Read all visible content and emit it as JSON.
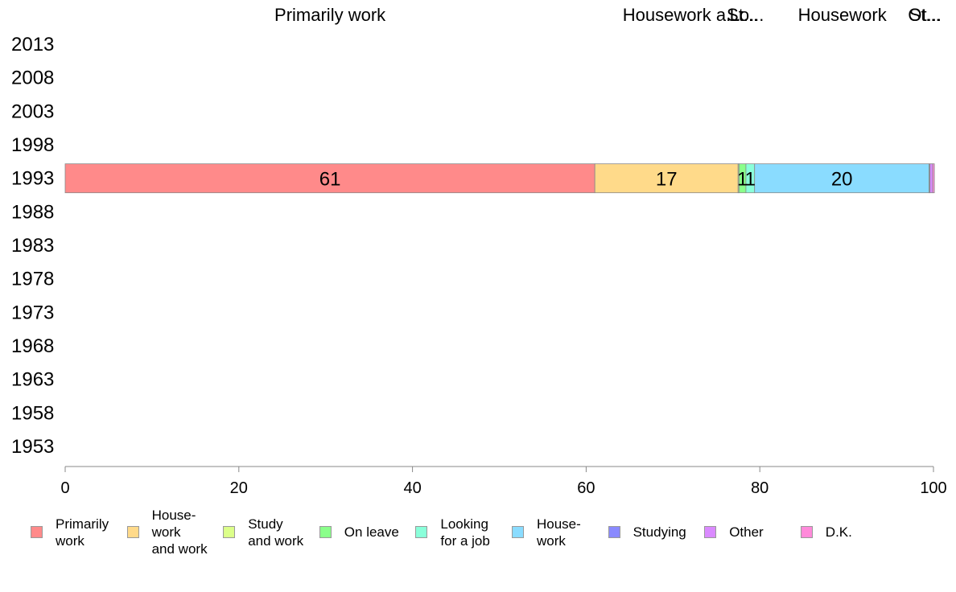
{
  "chart_data": {
    "type": "bar",
    "orientation": "horizontal",
    "stacked": true,
    "categories": [
      "2013",
      "2008",
      "2003",
      "1998",
      "1993",
      "1988",
      "1983",
      "1978",
      "1973",
      "1968",
      "1963",
      "1958",
      "1953"
    ],
    "xlim": [
      0,
      100
    ],
    "xticks": [
      "0",
      "20",
      "40",
      "60",
      "80",
      "100"
    ],
    "grid": false,
    "legend_position": "bottom",
    "top_labels": [
      "Primarily work",
      "Housework a...",
      "St...",
      "Lo...",
      "Housework",
      "St...",
      "Ot..."
    ],
    "series": [
      {
        "name": "Primarily work",
        "legend": "Primarily\nwork",
        "color": "#ff8a8a",
        "values": [
          null,
          null,
          null,
          null,
          61,
          null,
          null,
          null,
          null,
          null,
          null,
          null,
          null
        ],
        "data_labels": [
          "",
          "",
          "",
          "",
          "61",
          "",
          "",
          "",
          "",
          "",
          "",
          "",
          ""
        ]
      },
      {
        "name": "Housework and work",
        "legend": "House-\nwork\nand work",
        "color": "#ffda8a",
        "values": [
          null,
          null,
          null,
          null,
          16.5,
          null,
          null,
          null,
          null,
          null,
          null,
          null,
          null
        ],
        "data_labels": [
          "",
          "",
          "",
          "",
          "17",
          "",
          "",
          "",
          "",
          "",
          "",
          "",
          ""
        ]
      },
      {
        "name": "Study and work",
        "legend": "Study\nand work",
        "color": "#dcff8a",
        "values": [
          null,
          null,
          null,
          null,
          0.1,
          null,
          null,
          null,
          null,
          null,
          null,
          null,
          null
        ],
        "data_labels": [
          "",
          "",
          "",
          "",
          "",
          "",
          "",
          "",
          "",
          "",
          "",
          "",
          ""
        ]
      },
      {
        "name": "On leave",
        "legend": "On leave",
        "color": "#8aff8a",
        "values": [
          null,
          null,
          null,
          null,
          0.8,
          null,
          null,
          null,
          null,
          null,
          null,
          null,
          null
        ],
        "data_labels": [
          "",
          "",
          "",
          "",
          "1",
          "",
          "",
          "",
          "",
          "",
          "",
          "",
          ""
        ]
      },
      {
        "name": "Looking for a job",
        "legend": "Looking\nfor a job",
        "color": "#8affda",
        "values": [
          null,
          null,
          null,
          null,
          1,
          null,
          null,
          null,
          null,
          null,
          null,
          null,
          null
        ],
        "data_labels": [
          "",
          "",
          "",
          "",
          "1",
          "",
          "",
          "",
          "",
          "",
          "",
          "",
          ""
        ]
      },
      {
        "name": "Housework",
        "legend": "House-\nwork",
        "color": "#8adcff",
        "values": [
          null,
          null,
          null,
          null,
          20.1,
          null,
          null,
          null,
          null,
          null,
          null,
          null,
          null
        ],
        "data_labels": [
          "",
          "",
          "",
          "",
          "20",
          "",
          "",
          "",
          "",
          "",
          "",
          "",
          ""
        ]
      },
      {
        "name": "Studying",
        "legend": "Studying",
        "color": "#8a8aff",
        "values": [
          null,
          null,
          null,
          null,
          0.1,
          null,
          null,
          null,
          null,
          null,
          null,
          null,
          null
        ],
        "data_labels": [
          "",
          "",
          "",
          "",
          "",
          "",
          "",
          "",
          "",
          "",
          "",
          "",
          ""
        ]
      },
      {
        "name": "Other",
        "legend": "Other",
        "color": "#da8aff",
        "values": [
          null,
          null,
          null,
          null,
          0.3,
          null,
          null,
          null,
          null,
          null,
          null,
          null,
          null
        ],
        "data_labels": [
          "",
          "",
          "",
          "",
          "",
          "",
          "",
          "",
          "",
          "",
          "",
          "",
          ""
        ]
      },
      {
        "name": "D.K.",
        "legend": "D.K.",
        "color": "#ff8ada",
        "values": [
          null,
          null,
          null,
          null,
          0.2,
          null,
          null,
          null,
          null,
          null,
          null,
          null,
          null
        ],
        "data_labels": [
          "",
          "",
          "",
          "",
          "",
          "",
          "",
          "",
          "",
          "",
          "",
          "",
          ""
        ]
      }
    ]
  }
}
